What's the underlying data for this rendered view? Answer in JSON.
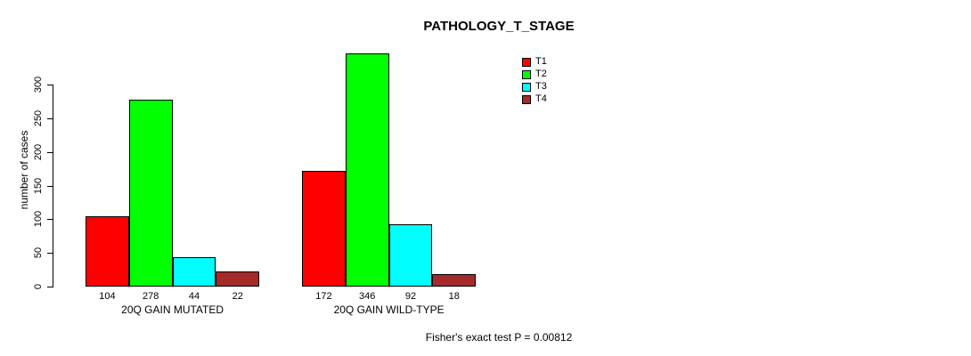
{
  "chart_data": {
    "type": "bar",
    "title": "PATHOLOGY_T_STAGE",
    "xlabel": "",
    "ylabel": "number of cases",
    "ylim": [
      0,
      300
    ],
    "yticks": [
      0,
      50,
      100,
      150,
      200,
      250,
      300
    ],
    "grid": false,
    "legend_position": "top-right",
    "categories": [
      "20Q GAIN MUTATED",
      "20Q GAIN WILD-TYPE"
    ],
    "series": [
      {
        "name": "T1",
        "color": "#FF0000",
        "values": [
          104,
          172
        ]
      },
      {
        "name": "T2",
        "color": "#00FF00",
        "values": [
          278,
          346
        ]
      },
      {
        "name": "T3",
        "color": "#00FFFF",
        "values": [
          44,
          92
        ]
      },
      {
        "name": "T4",
        "color": "#A52A2A",
        "values": [
          22,
          18
        ]
      }
    ],
    "bar_value_labels": [
      [
        104,
        278,
        44,
        22
      ],
      [
        172,
        346,
        92,
        18
      ]
    ],
    "annotation": "Fisher's exact test P = 0.00812"
  }
}
